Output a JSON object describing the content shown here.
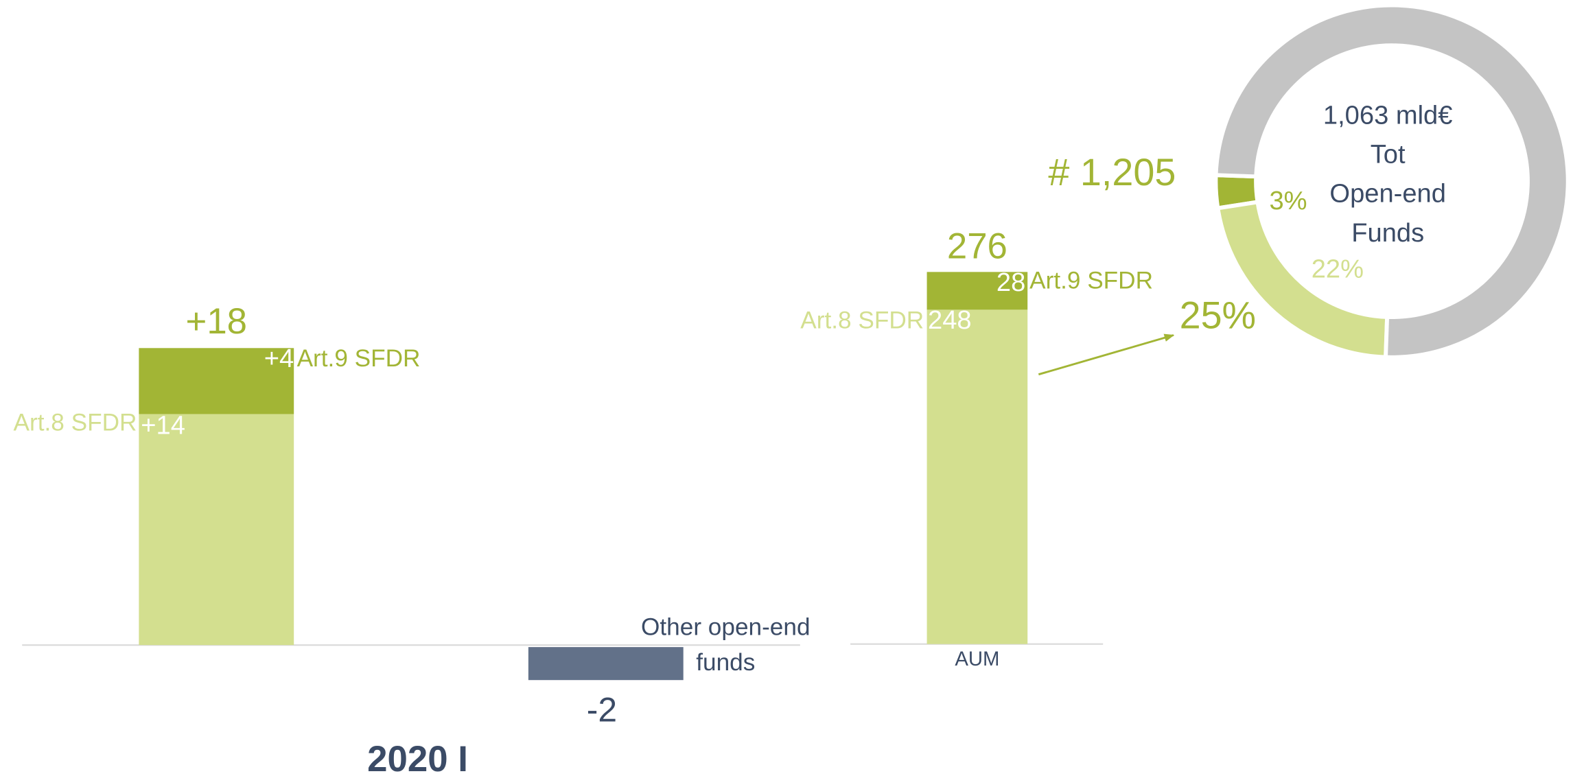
{
  "chart_data": [
    {
      "type": "waterfall",
      "title": "2020 I",
      "series": [
        {
          "name": "Art.8 SFDR",
          "color": "#d3df8f",
          "values": [
            14,
            null
          ],
          "value_labels": [
            "+14",
            null
          ]
        },
        {
          "name": "Art.9 SFDR",
          "color": "#a2b535",
          "values": [
            4,
            null
          ],
          "value_labels": [
            "+4",
            null
          ]
        },
        {
          "name": "Other open-end funds",
          "color": "#627189",
          "values": [
            null,
            -2
          ]
        }
      ],
      "totals": [
        18,
        -2
      ],
      "total_labels": [
        "+18",
        "-2"
      ]
    },
    {
      "type": "stacked_bar",
      "categories": [
        "AUM"
      ],
      "series": [
        {
          "name": "Art.8 SFDR",
          "color": "#d3df8f",
          "values": [
            248
          ]
        },
        {
          "name": "Art.9 SFDR",
          "color": "#a2b535",
          "values": [
            28
          ]
        }
      ],
      "totals": [
        276
      ]
    },
    {
      "type": "donut",
      "center_text": [
        "1,063 mld€",
        "Tot",
        "Open-end",
        "Funds"
      ],
      "count_label": "# 1,205",
      "callout": 25,
      "callout_label": "25%",
      "values": [
        3,
        22,
        75
      ],
      "value_labels": [
        "3%",
        "22%",
        null
      ],
      "colors": [
        "#a2b535",
        "#d3df8f",
        "#c4c4c4"
      ]
    }
  ]
}
